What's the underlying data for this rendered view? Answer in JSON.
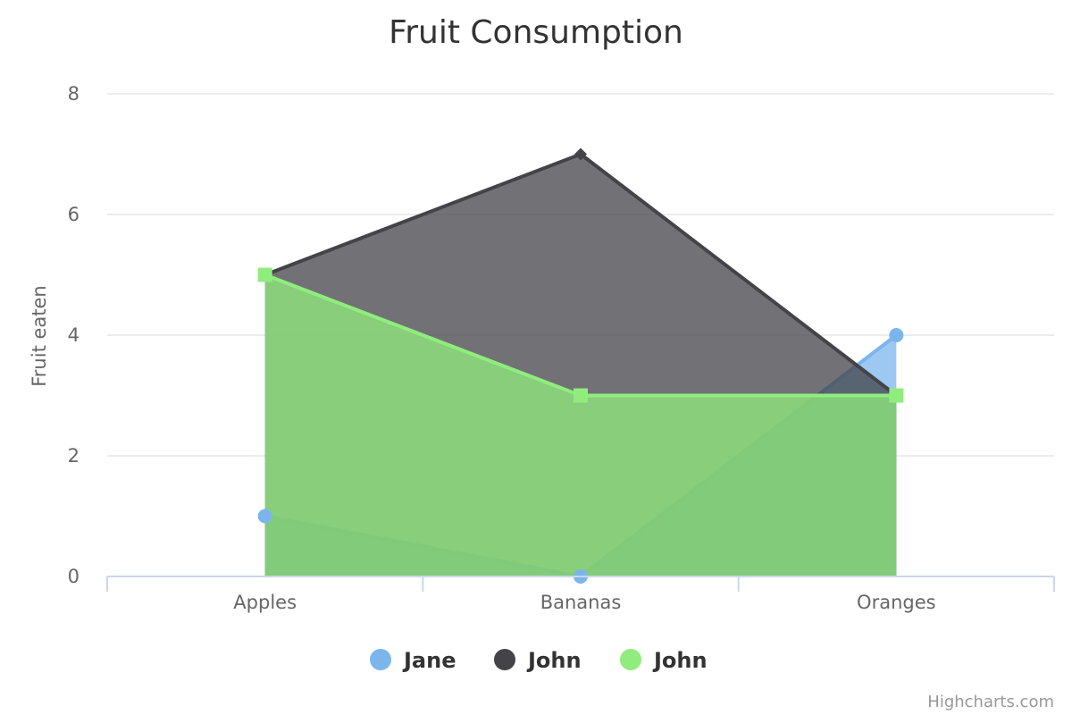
{
  "chart_data": {
    "type": "area",
    "title": "Fruit Consumption",
    "xlabel": "",
    "ylabel": "Fruit eaten",
    "categories": [
      "Apples",
      "Bananas",
      "Oranges"
    ],
    "ylim": [
      0,
      8
    ],
    "yticks": [
      0,
      2,
      4,
      6,
      8
    ],
    "grid": true,
    "legend_position": "bottom-center",
    "series": [
      {
        "name": "Jane",
        "values": [
          1,
          0,
          4
        ],
        "color": "#7cb5ec",
        "fill_color": "#7cb5ec",
        "marker": "circle"
      },
      {
        "name": "John",
        "values": [
          5,
          7,
          3
        ],
        "color": "#434348",
        "fill_color": "#434348",
        "marker": "diamond"
      },
      {
        "name": "John",
        "values": [
          5,
          3,
          3
        ],
        "color": "#90ed7d",
        "fill_color": "#90ed7d",
        "marker": "square"
      }
    ]
  },
  "credits": "Highcharts.com"
}
